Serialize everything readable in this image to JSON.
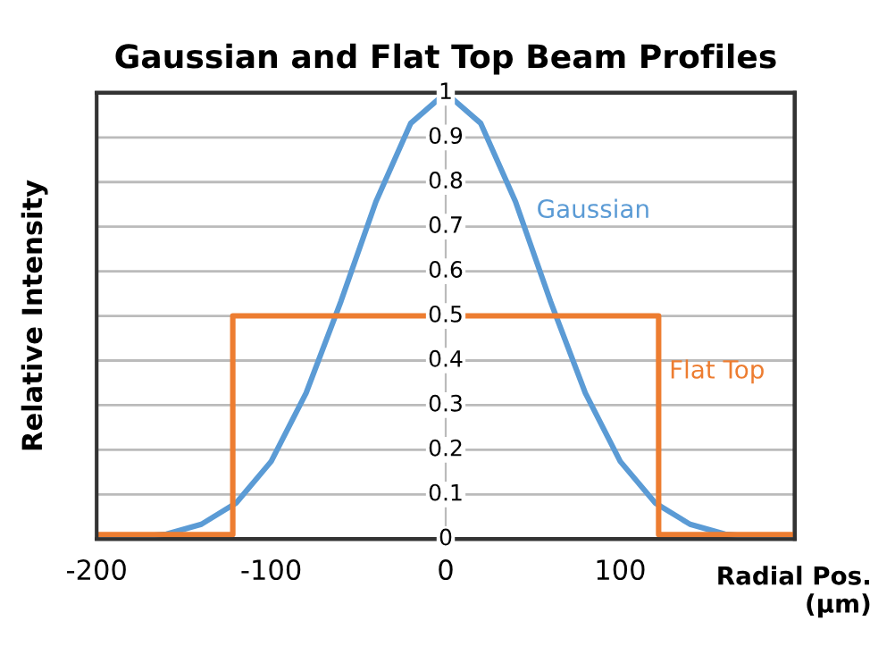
{
  "chart_data": {
    "type": "line",
    "title": "Gaussian and Flat Top Beam Profiles",
    "xlabel": "Radial Pos.\n(µm)",
    "ylabel": "Relative Intensity",
    "xlim": [
      -200,
      200
    ],
    "xticks": [
      -200,
      -100,
      0,
      100
    ],
    "ylim": [
      0,
      1
    ],
    "yticks": [
      0,
      0.1,
      0.2,
      0.3,
      0.4,
      0.5,
      0.6,
      0.7,
      0.8,
      0.9,
      1
    ],
    "grid": "y",
    "marker": "none",
    "line_style": "solid",
    "series": [
      {
        "name": "Gaussian",
        "color": "#5b9bd5",
        "x": [
          -200,
          -180,
          -160,
          -140,
          -120,
          -100,
          -80,
          -60,
          -40,
          -20,
          0,
          20,
          40,
          60,
          80,
          100,
          120,
          140,
          160,
          180,
          200
        ],
        "values": [
          0.001,
          0.004,
          0.011,
          0.033,
          0.081,
          0.174,
          0.327,
          0.533,
          0.756,
          0.932,
          1,
          0.932,
          0.756,
          0.533,
          0.327,
          0.174,
          0.081,
          0.033,
          0.011,
          0.004,
          0.001
        ]
      },
      {
        "name": "Flat Top",
        "color": "#ed7d31",
        "x": [
          -200,
          -122,
          -122,
          122,
          122,
          200
        ],
        "values": [
          0.01,
          0.01,
          0.5,
          0.5,
          0.01,
          0.01
        ]
      }
    ]
  }
}
